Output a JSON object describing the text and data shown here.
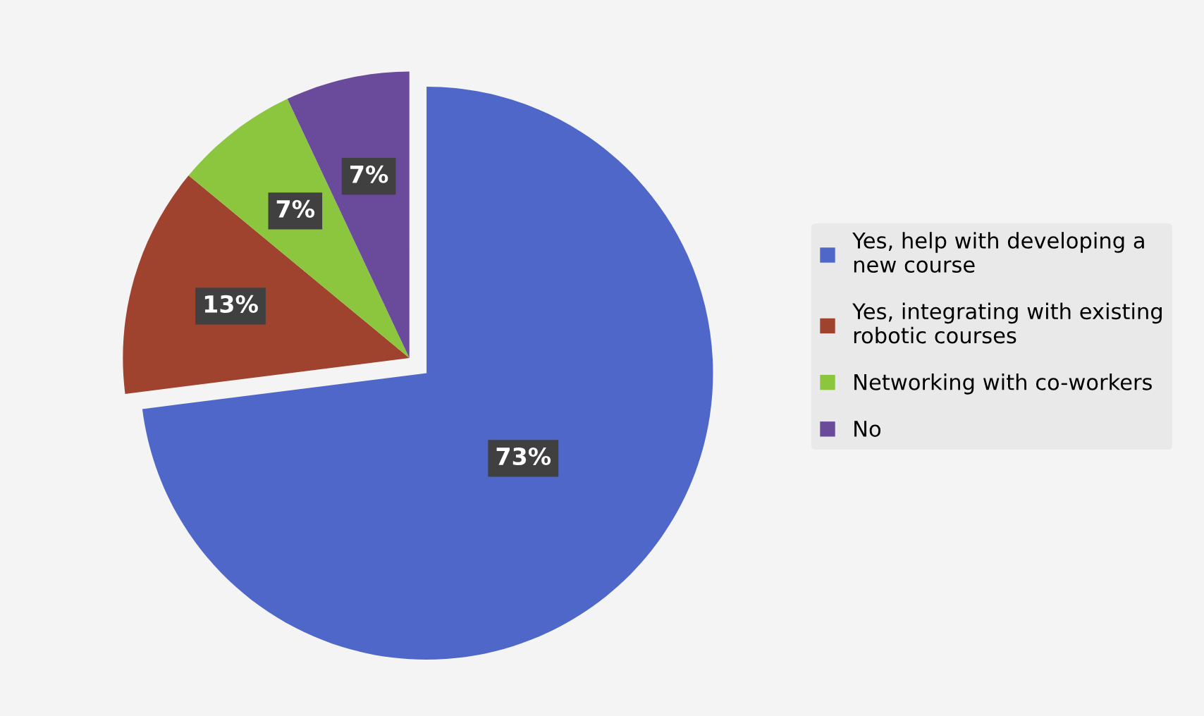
{
  "chart_data": {
    "type": "pie",
    "categories": [
      "Yes, help with developing a new course",
      "Yes, integrating with existing robotic courses",
      "Networking with co-workers",
      "No"
    ],
    "values": [
      73,
      13,
      7,
      7
    ],
    "colors": [
      "#4f67c8",
      "#a0432e",
      "#8cc63f",
      "#6a4a9a"
    ],
    "value_labels": [
      "73%",
      "13%",
      "7%",
      "7%"
    ],
    "legend": "right"
  }
}
